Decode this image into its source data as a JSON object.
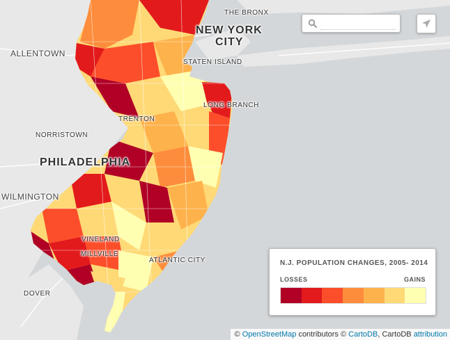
{
  "labels": [
    {
      "id": "the-bronx",
      "text": "THE BRONX"
    },
    {
      "id": "new-york",
      "text": "NEW YORK"
    },
    {
      "id": "city",
      "text": "CITY"
    },
    {
      "id": "allentown",
      "text": "ALLENTOWN"
    },
    {
      "id": "staten-island",
      "text": "STATEN ISLAND"
    },
    {
      "id": "long-branch",
      "text": "LONG BRANCH"
    },
    {
      "id": "trenton",
      "text": "TRENTON"
    },
    {
      "id": "norristown",
      "text": "NORRISTOWN"
    },
    {
      "id": "philadelphia",
      "text": "PHILADELPHIA"
    },
    {
      "id": "wilmington",
      "text": "WILMINGTON"
    },
    {
      "id": "vineland",
      "text": "VINELAND"
    },
    {
      "id": "millville",
      "text": "MILLVILLE"
    },
    {
      "id": "atlantic-city",
      "text": "ATLANTIC CITY"
    },
    {
      "id": "dover",
      "text": "DOVER"
    }
  ],
  "search": {
    "placeholder": "",
    "value": ""
  },
  "legend": {
    "title": "N.J. POPULATION CHANGES, 2005- 2014",
    "left_label": "LOSSES",
    "right_label": "GAINS",
    "colors": [
      "#b10026",
      "#e31a1c",
      "#fc4e2a",
      "#fd8d3c",
      "#feb24c",
      "#fed976",
      "#ffffb2"
    ]
  },
  "attribution": {
    "copyright1": "©",
    "osm": "OpenStreetMap",
    "contributors": "contributors ©",
    "cartodb": "CartoDB",
    "cartodb_text": ", CartoDB",
    "attr_link": "attribution"
  }
}
